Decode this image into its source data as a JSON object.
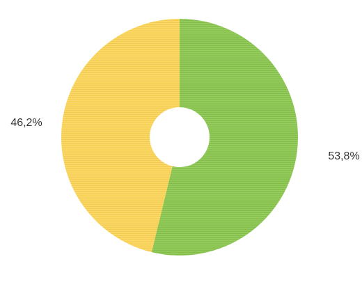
{
  "chart_data": {
    "type": "pie",
    "variant": "donut",
    "slices": [
      {
        "value": 53.8,
        "label": "53,8%",
        "color": "#8cc751"
      },
      {
        "value": 46.2,
        "label": "46,2%",
        "color": "#fcd55a"
      }
    ],
    "start": "top",
    "direction": "clockwise",
    "legend": "none"
  }
}
